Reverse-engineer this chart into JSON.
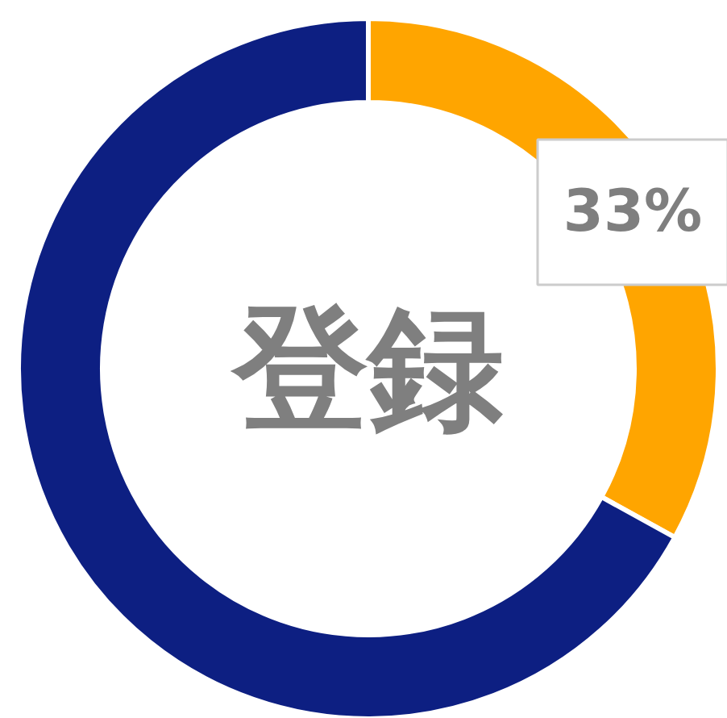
{
  "chart_data": {
    "type": "donut",
    "categories": [
      null,
      null
    ],
    "values": [
      33,
      67
    ],
    "colors": [
      "#ffa500",
      "#0d1f82"
    ],
    "value_labels": [
      "33%",
      null
    ],
    "annotations": [
      "登録"
    ]
  }
}
